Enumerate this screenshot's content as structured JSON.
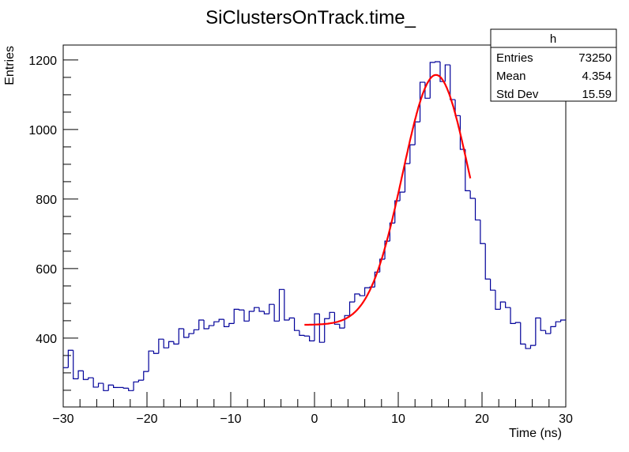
{
  "chart_data": {
    "type": "histogram",
    "title": "SiClustersOnTrack.time_",
    "xlabel": "Time (ns)",
    "ylabel": "Entries",
    "xlim": [
      -30,
      30
    ],
    "ylim": [
      202,
      1243
    ],
    "bin_edges_start": -30,
    "bin_width": 0.6,
    "x_ticks": [
      -30,
      -20,
      -10,
      0,
      10,
      20,
      30
    ],
    "y_ticks": [
      400,
      600,
      800,
      1000,
      1200
    ],
    "grid": false,
    "line_color": "#000099",
    "fit_color": "#ff0000",
    "values": [
      315,
      365,
      283,
      306,
      281,
      286,
      259,
      270,
      249,
      265,
      258,
      258,
      256,
      249,
      274,
      279,
      304,
      363,
      356,
      397,
      372,
      390,
      383,
      427,
      402,
      413,
      424,
      452,
      427,
      436,
      447,
      454,
      433,
      442,
      483,
      481,
      449,
      477,
      488,
      477,
      470,
      497,
      449,
      540,
      452,
      458,
      422,
      408,
      406,
      392,
      470,
      388,
      456,
      474,
      440,
      429,
      465,
      504,
      527,
      522,
      545,
      547,
      590,
      627,
      679,
      731,
      795,
      820,
      902,
      956,
      1022,
      1136,
      1090,
      1193,
      1195,
      1138,
      1186,
      1086,
      1040,
      943,
      824,
      802,
      740,
      672,
      570,
      538,
      483,
      504,
      488,
      442,
      445,
      383,
      370,
      379,
      458,
      422,
      413,
      433,
      447,
      452
    ],
    "fit": {
      "function": "gaus + const",
      "constant": 438,
      "amplitude": 719,
      "mean": 14.5,
      "sigma": 3.97,
      "range": [
        -1.2,
        18.6
      ]
    },
    "stats_box": {
      "title": "h",
      "rows": [
        {
          "label": "Entries",
          "value": "73250"
        },
        {
          "label": "Mean",
          "value": "4.354"
        },
        {
          "label": "Std Dev",
          "value": "15.59"
        }
      ]
    }
  }
}
